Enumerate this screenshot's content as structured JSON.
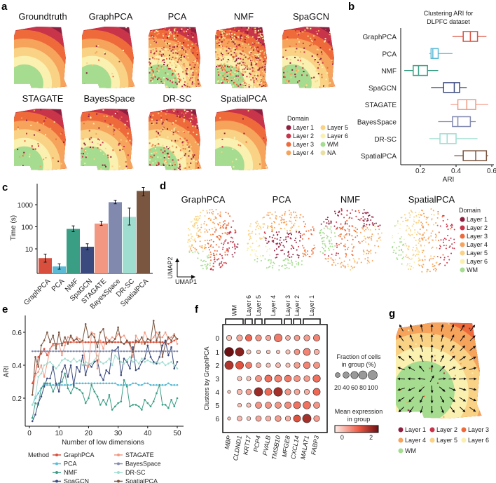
{
  "panel_labels": {
    "a": "a",
    "b": "b",
    "c": "c",
    "d": "d",
    "e": "e",
    "f": "f",
    "g": "g"
  },
  "domain_colors": {
    "Layer 1": "#8E1F3F",
    "Layer 2": "#C8344A",
    "Layer 3": "#EE6A3A",
    "Layer 4": "#F6A35C",
    "Layer 5": "#F9D285",
    "Layer 6": "#FAF0B0",
    "WM": "#A5DC8F",
    "NA": "#E8DFA0"
  },
  "method_colors": {
    "GraphPCA": "#D94F3D",
    "PCA": "#5BBBD6",
    "NMF": "#3A9E85",
    "SpaGCN": "#3B4A7E",
    "STAGATE": "#F29882",
    "BayesSpace": "#8189AF",
    "DR-SC": "#9FDDD0",
    "SpatialPCA": "#7A5540"
  },
  "panel_a": {
    "titles": [
      "Groundtruth",
      "GraphPCA",
      "PCA",
      "NMF",
      "SpaGCN",
      "STAGATE",
      "BayesSpace",
      "DR-SC",
      "SpatialPCA"
    ],
    "legend_title": "Domain",
    "legend": [
      "Layer 1",
      "Layer 2",
      "Layer 3",
      "Layer 4",
      "Layer 5",
      "Layer 6",
      "WM",
      "NA"
    ]
  },
  "panel_d": {
    "titles": [
      "GraphPCA",
      "PCA",
      "NMF",
      "SpatialPCA"
    ],
    "axis_x": "UMAP1",
    "axis_y": "UMAP2",
    "legend_title": "Domain",
    "legend": [
      "Layer 1",
      "Layer 2",
      "Layer 3",
      "Layer 4",
      "Layer 5",
      "Layer 6",
      "WM"
    ]
  },
  "panel_g": {
    "legend": [
      "Layer 1",
      "Layer 2",
      "Layer 3",
      "Layer 4",
      "Layer 5",
      "Layer 6",
      "WM"
    ]
  },
  "chart_data": [
    {
      "panel": "b",
      "type": "boxplot",
      "title": "Clustering ARI for DLPFC dataset",
      "title_lines": [
        "Clustering ARI for",
        "DLPFC dataset"
      ],
      "xlabel": "ARI",
      "xlim": [
        0.1,
        0.6
      ],
      "xticks": [
        "0.2",
        "0.4",
        "0.6"
      ],
      "xtick_values": [
        0.2,
        0.4,
        0.6
      ],
      "categories": [
        "GraphPCA",
        "PCA",
        "NMF",
        "SpaGCN",
        "STAGATE",
        "BayesSpace",
        "DR-SC",
        "SpatialPCA"
      ],
      "boxes": [
        {
          "min": 0.38,
          "q1": 0.44,
          "median": 0.48,
          "q3": 0.52,
          "max": 0.57
        },
        {
          "min": 0.25,
          "q1": 0.26,
          "median": 0.27,
          "q3": 0.3,
          "max": 0.38
        },
        {
          "min": 0.11,
          "q1": 0.16,
          "median": 0.19,
          "q3": 0.24,
          "max": 0.3
        },
        {
          "min": 0.26,
          "q1": 0.33,
          "median": 0.39,
          "q3": 0.42,
          "max": 0.46
        },
        {
          "min": 0.37,
          "q1": 0.41,
          "median": 0.46,
          "q3": 0.51,
          "max": 0.58
        },
        {
          "min": 0.3,
          "q1": 0.38,
          "median": 0.41,
          "q3": 0.48,
          "max": 0.51
        },
        {
          "min": 0.25,
          "q1": 0.31,
          "median": 0.35,
          "q3": 0.4,
          "max": 0.52
        },
        {
          "min": 0.39,
          "q1": 0.44,
          "median": 0.51,
          "q3": 0.57,
          "max": 0.58
        }
      ]
    },
    {
      "panel": "c",
      "type": "bar",
      "ylabel": "Time (s)",
      "yscale": "log",
      "ylim": [
        0.8,
        10000
      ],
      "yticks": [
        "10",
        "100",
        "1000"
      ],
      "ytick_values": [
        10,
        100,
        1000
      ],
      "categories": [
        "GraphPCA",
        "PCA",
        "NMF",
        "SpaGCN",
        "STAGATE",
        "BayesSpace",
        "DR-SC",
        "SpatialPCA"
      ],
      "values": [
        3.8,
        1.6,
        80,
        12.5,
        140,
        1300,
        280,
        4200
      ],
      "error_low": [
        2.5,
        1.2,
        60,
        9,
        115,
        1100,
        120,
        2500
      ],
      "error_high": [
        5.8,
        2.1,
        110,
        17,
        175,
        1600,
        700,
        6000
      ]
    },
    {
      "panel": "e",
      "type": "line",
      "xlabel": "Number of low dimensions",
      "ylabel": "ARI",
      "xlim": [
        0,
        52
      ],
      "ylim": [
        0.05,
        0.7
      ],
      "xticks": [
        "0",
        "10",
        "20",
        "30",
        "40",
        "50"
      ],
      "xtick_values": [
        0,
        10,
        20,
        30,
        40,
        50
      ],
      "yticks": [
        "0.2",
        "0.4",
        "0.6"
      ],
      "ytick_values": [
        0.2,
        0.4,
        0.6
      ],
      "legend_title": "Method",
      "legend_position": "bottom",
      "x": [
        1,
        2,
        3,
        4,
        5,
        6,
        7,
        8,
        9,
        10,
        11,
        12,
        13,
        14,
        15,
        16,
        17,
        18,
        19,
        20,
        21,
        22,
        23,
        24,
        25,
        26,
        27,
        28,
        29,
        30,
        31,
        32,
        33,
        34,
        35,
        36,
        37,
        38,
        39,
        40,
        41,
        42,
        43,
        44,
        45,
        46,
        47,
        48,
        49,
        50
      ],
      "series": [
        {
          "name": "GraphPCA",
          "values": [
            0.29,
            0.35,
            0.45,
            0.47,
            0.5,
            0.46,
            0.5,
            0.53,
            0.53,
            0.53,
            0.53,
            0.54,
            0.54,
            0.54,
            0.54,
            0.54,
            0.54,
            0.54,
            0.54,
            0.54,
            0.54,
            0.54,
            0.54,
            0.54,
            0.54,
            0.54,
            0.54,
            0.54,
            0.54,
            0.54,
            0.54,
            0.53,
            0.54,
            0.54,
            0.54,
            0.54,
            0.54,
            0.54,
            0.54,
            0.54,
            0.54,
            0.54,
            0.54,
            0.54,
            0.54,
            0.54,
            0.53,
            0.54,
            0.55,
            0.56
          ]
        },
        {
          "name": "PCA",
          "values": [
            0.16,
            0.2,
            0.23,
            0.26,
            0.28,
            0.28,
            0.28,
            0.28,
            0.28,
            0.28,
            0.28,
            0.28,
            0.28,
            0.28,
            0.29,
            0.29,
            0.29,
            0.29,
            0.29,
            0.29,
            0.29,
            0.29,
            0.29,
            0.29,
            0.29,
            0.29,
            0.29,
            0.29,
            0.29,
            0.28,
            0.28,
            0.28,
            0.28,
            0.28,
            0.29,
            0.29,
            0.28,
            0.28,
            0.29,
            0.29,
            0.28,
            0.28,
            0.28,
            0.28,
            0.28,
            0.28,
            0.29,
            0.28,
            0.28,
            0.28
          ]
        },
        {
          "name": "NMF",
          "values": [
            0.08,
            0.17,
            0.16,
            0.26,
            0.29,
            0.29,
            0.29,
            0.24,
            0.28,
            0.29,
            0.3,
            0.35,
            0.26,
            0.23,
            0.27,
            0.26,
            0.25,
            0.23,
            0.17,
            0.2,
            0.28,
            0.24,
            0.21,
            0.16,
            0.19,
            0.16,
            0.22,
            0.13,
            0.15,
            0.17,
            0.18,
            0.31,
            0.27,
            0.15,
            0.16,
            0.16,
            0.15,
            0.13,
            0.19,
            0.17,
            0.15,
            0.18,
            0.23,
            0.28,
            0.16,
            0.16,
            0.14,
            0.19,
            0.15,
            0.2
          ]
        },
        {
          "name": "SpaGCN",
          "values": [
            0.06,
            0.1,
            0.17,
            0.21,
            0.27,
            0.32,
            0.32,
            0.39,
            0.29,
            0.24,
            0.36,
            0.4,
            0.33,
            0.4,
            0.28,
            0.39,
            0.36,
            0.46,
            0.34,
            0.41,
            0.39,
            0.42,
            0.43,
            0.34,
            0.31,
            0.37,
            0.35,
            0.49,
            0.49,
            0.51,
            0.34,
            0.44,
            0.42,
            0.38,
            0.51,
            0.37,
            0.38,
            0.42,
            0.44,
            0.52,
            0.45,
            0.42,
            0.41,
            0.45,
            0.52,
            0.55,
            0.46,
            0.51,
            0.38,
            0.42
          ]
        },
        {
          "name": "STAGATE",
          "values": [
            0.22,
            0.34,
            0.36,
            0.4,
            0.33,
            0.41,
            0.5,
            0.52,
            0.52,
            0.53,
            0.46,
            0.52,
            0.57,
            0.57,
            0.54,
            0.57,
            0.56,
            0.54,
            0.4,
            0.39,
            0.6,
            0.59,
            0.38,
            0.55,
            0.5,
            0.57,
            0.55,
            0.57,
            0.56,
            0.59,
            0.57,
            0.58,
            0.55,
            0.52,
            0.45,
            0.58,
            0.55,
            0.53,
            0.6,
            0.56,
            0.55,
            0.57,
            0.6,
            0.57,
            0.57,
            0.6,
            0.56,
            0.57,
            0.59,
            0.53
          ]
        },
        {
          "name": "BayesSpace",
          "values": [
            0.485,
            0.485,
            0.485,
            0.485,
            0.485,
            0.485,
            0.485,
            0.485,
            0.485,
            0.485,
            0.485,
            0.485,
            0.485,
            0.485,
            0.485,
            0.485,
            0.485,
            0.485,
            0.485,
            0.485,
            0.485,
            0.485,
            0.485,
            0.485,
            0.485,
            0.485,
            0.485,
            0.485,
            0.485,
            0.485,
            0.485,
            0.485,
            0.485,
            0.485,
            0.485,
            0.485,
            0.485,
            0.485,
            0.485,
            0.485,
            0.485,
            0.485,
            0.485,
            0.485,
            0.485,
            0.485,
            0.485,
            0.485,
            0.485,
            0.485
          ]
        },
        {
          "name": "DR-SC",
          "values": [
            0.16,
            0.21,
            0.33,
            0.35,
            0.4,
            0.41,
            0.42,
            0.4,
            0.38,
            0.4,
            0.43,
            0.44,
            0.43,
            0.42,
            0.44,
            0.42,
            0.43,
            0.4,
            0.42,
            0.41,
            0.41,
            0.43,
            0.46,
            0.42,
            0.41,
            0.42,
            0.44,
            0.4,
            0.46,
            0.44,
            0.42,
            0.41,
            0.43,
            0.45,
            0.42,
            0.43,
            0.41,
            0.44,
            0.42,
            0.43,
            0.42,
            0.41,
            0.42,
            0.41,
            0.42,
            0.4,
            0.41,
            0.42,
            0.4,
            0.38
          ]
        },
        {
          "name": "SpatialPCA",
          "values": [
            0.22,
            0.45,
            0.39,
            0.52,
            0.55,
            0.6,
            0.54,
            0.58,
            0.5,
            0.6,
            0.52,
            0.57,
            0.53,
            0.58,
            0.55,
            0.56,
            0.54,
            0.55,
            0.65,
            0.57,
            0.59,
            0.57,
            0.51,
            0.6,
            0.62,
            0.53,
            0.55,
            0.54,
            0.56,
            0.63,
            0.54,
            0.53,
            0.55,
            0.53,
            0.48,
            0.55,
            0.54,
            0.57,
            0.53,
            0.56,
            0.55,
            0.67,
            0.55,
            0.6,
            0.45,
            0.53,
            0.57,
            0.55,
            0.58,
            0.56
          ]
        }
      ]
    },
    {
      "panel": "f",
      "type": "dotplot",
      "ylabel": "Clusters by GraphPCA",
      "rows": [
        "0",
        "1",
        "2",
        "3",
        "4",
        "5",
        "6"
      ],
      "genes": [
        "MBP",
        "CLDND1",
        "KRT17",
        "PCP4",
        "PVALB",
        "TMSB10",
        "MFGE8",
        "CXCL14",
        "MALAT1",
        "FABP3"
      ],
      "gene_groups": [
        {
          "label": "WM",
          "genes": [
            "MBP",
            "CLDND1"
          ]
        },
        {
          "label": "Layer 6",
          "genes": [
            "KRT17"
          ]
        },
        {
          "label": "Layer 5",
          "genes": [
            "PCP4"
          ]
        },
        {
          "label": "Layer 4",
          "genes": [
            "PVALB",
            "TMSB10"
          ]
        },
        {
          "label": "Layer 3",
          "genes": [
            "MFGE8"
          ]
        },
        {
          "label": "Layer 2",
          "genes": [
            "CXCL14"
          ]
        },
        {
          "label": "Layer 1",
          "genes": [
            "MALAT1",
            "FABP3"
          ]
        }
      ],
      "fraction_pct": [
        [
          25,
          35,
          45,
          35,
          25,
          70,
          20,
          30,
          35,
          45
        ],
        [
          100,
          85,
          15,
          10,
          10,
          8,
          15,
          30,
          55,
          25
        ],
        [
          85,
          70,
          40,
          20,
          15,
          20,
          15,
          35,
          50,
          40
        ],
        [
          null,
          15,
          15,
          40,
          55,
          55,
          50,
          40,
          35,
          60
        ],
        [
          5,
          25,
          30,
          85,
          55,
          90,
          35,
          30,
          25,
          55
        ],
        [
          null,
          10,
          15,
          40,
          40,
          40,
          45,
          55,
          65,
          40
        ],
        [
          5,
          20,
          10,
          30,
          25,
          35,
          25,
          55,
          85,
          35
        ]
      ],
      "mean_expression": [
        [
          0,
          0.3,
          1.0,
          0.5,
          0.3,
          0.8,
          0.2,
          0.4,
          0.4,
          0.7
        ],
        [
          2.5,
          2.2,
          0,
          0,
          0,
          0,
          0,
          0.5,
          0.7,
          0.2
        ],
        [
          1.8,
          1.3,
          0.8,
          0.2,
          0,
          0.1,
          0,
          0.4,
          0.7,
          0.5
        ],
        [
          null,
          0,
          0,
          0.5,
          0.9,
          0.7,
          0.8,
          0.5,
          0.4,
          0.9
        ],
        [
          0,
          0.1,
          0.4,
          2.0,
          1.0,
          1.9,
          0.5,
          0.3,
          0.2,
          1.0
        ],
        [
          null,
          0,
          0,
          0.5,
          0.5,
          0.5,
          0.6,
          0.9,
          0.9,
          0.5
        ],
        [
          0,
          0.1,
          0,
          0.3,
          0.2,
          0.4,
          0.2,
          1.3,
          1.9,
          0.4
        ]
      ],
      "size_legend_title": [
        "Fraction of cells",
        "in group (%)"
      ],
      "size_legend": [
        "20",
        "40",
        "60",
        "80",
        "100"
      ],
      "size_legend_values": [
        20,
        40,
        60,
        80,
        100
      ],
      "color_legend_title": [
        "Mean expression",
        "in group"
      ],
      "color_legend_ticks": [
        "0",
        "2"
      ],
      "color_range": [
        -0.5,
        2.5
      ]
    }
  ]
}
